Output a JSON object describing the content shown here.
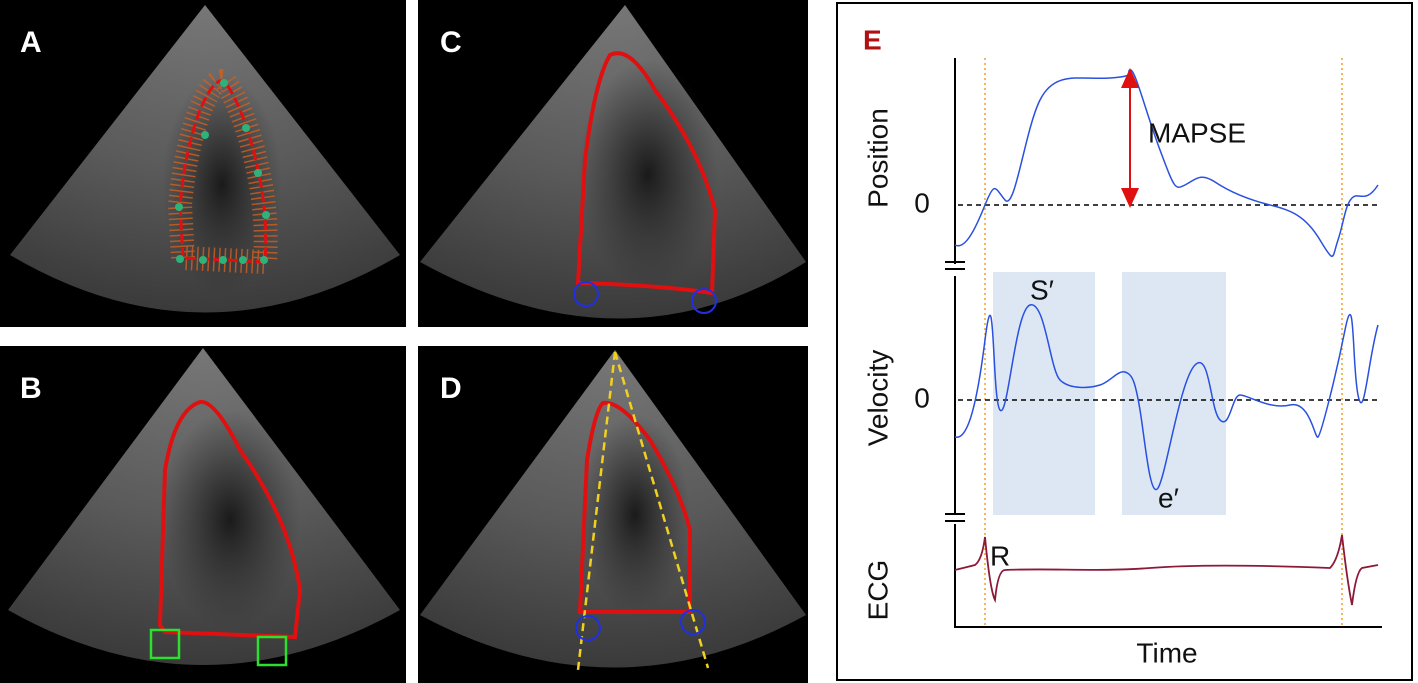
{
  "panels": {
    "a": "A",
    "b": "B",
    "c": "C",
    "d": "D",
    "e": "E"
  },
  "plot": {
    "position_label": "Position",
    "velocity_label": "Velocity",
    "ecg_label": "ECG",
    "x_label": "Time",
    "zero_position": 0,
    "zero_velocity": 0,
    "mapse": "MAPSE",
    "s_prime": "S′",
    "e_prime": "e′",
    "r_wave": "R"
  }
}
